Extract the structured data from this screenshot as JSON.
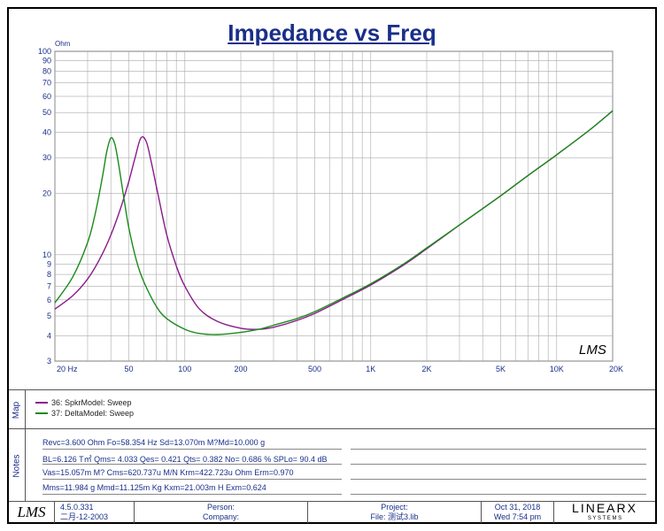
{
  "title": "Impedance vs Freq",
  "chart_data": {
    "type": "line",
    "title": "Impedance vs Freq",
    "ylabel": "Ohm",
    "xscale": "log",
    "yscale": "log",
    "xlim": [
      20,
      20000
    ],
    "ylim": [
      3,
      100
    ],
    "grid": true,
    "x_ticks": [
      "20 Hz",
      "50",
      "100",
      "200",
      "500",
      "1K",
      "2K",
      "5K",
      "10K",
      "20K"
    ],
    "y_ticks": [
      "100",
      "90",
      "80",
      "70",
      "60",
      "50",
      "40",
      "30",
      "20",
      "10",
      "9",
      "8",
      "7",
      "6",
      "5",
      "4",
      "3"
    ],
    "series": [
      {
        "name": "36: SpkrModel: Sweep",
        "color": "#8b1a8b",
        "x": [
          20,
          25,
          30,
          35,
          40,
          45,
          50,
          54,
          58,
          62,
          66,
          72,
          80,
          90,
          100,
          120,
          150,
          200,
          250,
          300,
          400,
          500,
          700,
          1000,
          1500,
          2000,
          3000,
          5000,
          7000,
          10000,
          15000,
          20000
        ],
        "y": [
          5.4,
          6.3,
          7.6,
          9.6,
          12.5,
          16.8,
          23,
          30,
          37.5,
          36,
          28.5,
          19.5,
          12.5,
          8.8,
          7,
          5.4,
          4.7,
          4.35,
          4.3,
          4.4,
          4.75,
          5.15,
          6.0,
          7.1,
          8.9,
          10.7,
          14.0,
          19.5,
          24.5,
          31,
          41,
          51
        ]
      },
      {
        "name": "37: DeltaModel: Sweep",
        "color": "#1a8b1a",
        "x": [
          20,
          25,
          30,
          33,
          36,
          38,
          40,
          42,
          44,
          47,
          50,
          55,
          60,
          70,
          80,
          100,
          120,
          150,
          200,
          250,
          300,
          400,
          500,
          700,
          1000,
          1500,
          2000,
          3000,
          5000,
          7000,
          10000,
          15000,
          20000
        ],
        "y": [
          5.8,
          7.8,
          11.5,
          16,
          24,
          32,
          37.5,
          35,
          28,
          19,
          13.5,
          9.3,
          7.4,
          5.6,
          4.85,
          4.3,
          4.1,
          4.05,
          4.15,
          4.3,
          4.5,
          4.85,
          5.25,
          6.1,
          7.2,
          9.0,
          10.8,
          14.0,
          19.5,
          24.5,
          31,
          41,
          51
        ]
      }
    ]
  },
  "watermark": "LMS",
  "map": {
    "label": "Map",
    "items": [
      {
        "name": "36: SpkrModel: Sweep",
        "color": "#8b1a8b"
      },
      {
        "name": "37: DeltaModel: Sweep",
        "color": "#1a8b1a"
      }
    ]
  },
  "notes": {
    "label": "Notes",
    "lines": [
      "Revc=3.600 Ohm  Fo=58.354 Hz  Sd=13.070m M?Md=10.000 g",
      "BL=6.126 T㎡  Qms= 4.033  Qes= 0.421  Qts= 0.382  No= 0.686 %  SPLo= 90.4 dB",
      "Vas=15.057m M?  Cms=620.737u M/N  Krm=422.723u Ohm  Erm=0.970",
      "Mms=11.984 g  Mmd=11.125m Kg  Kxm=21.003m H  Exm=0.624"
    ]
  },
  "footer": {
    "logo": "LMS",
    "version": "4.5.0.331",
    "version_date": "二月-12-2003",
    "person": "Person:",
    "company": "Company:",
    "project": "Project:",
    "file": "File: 测试3.lib",
    "date": "Oct 31, 2018",
    "time": "Wed  7:54 pm",
    "brand": "LINEARX",
    "brand_sub": "S Y S T E M S"
  }
}
